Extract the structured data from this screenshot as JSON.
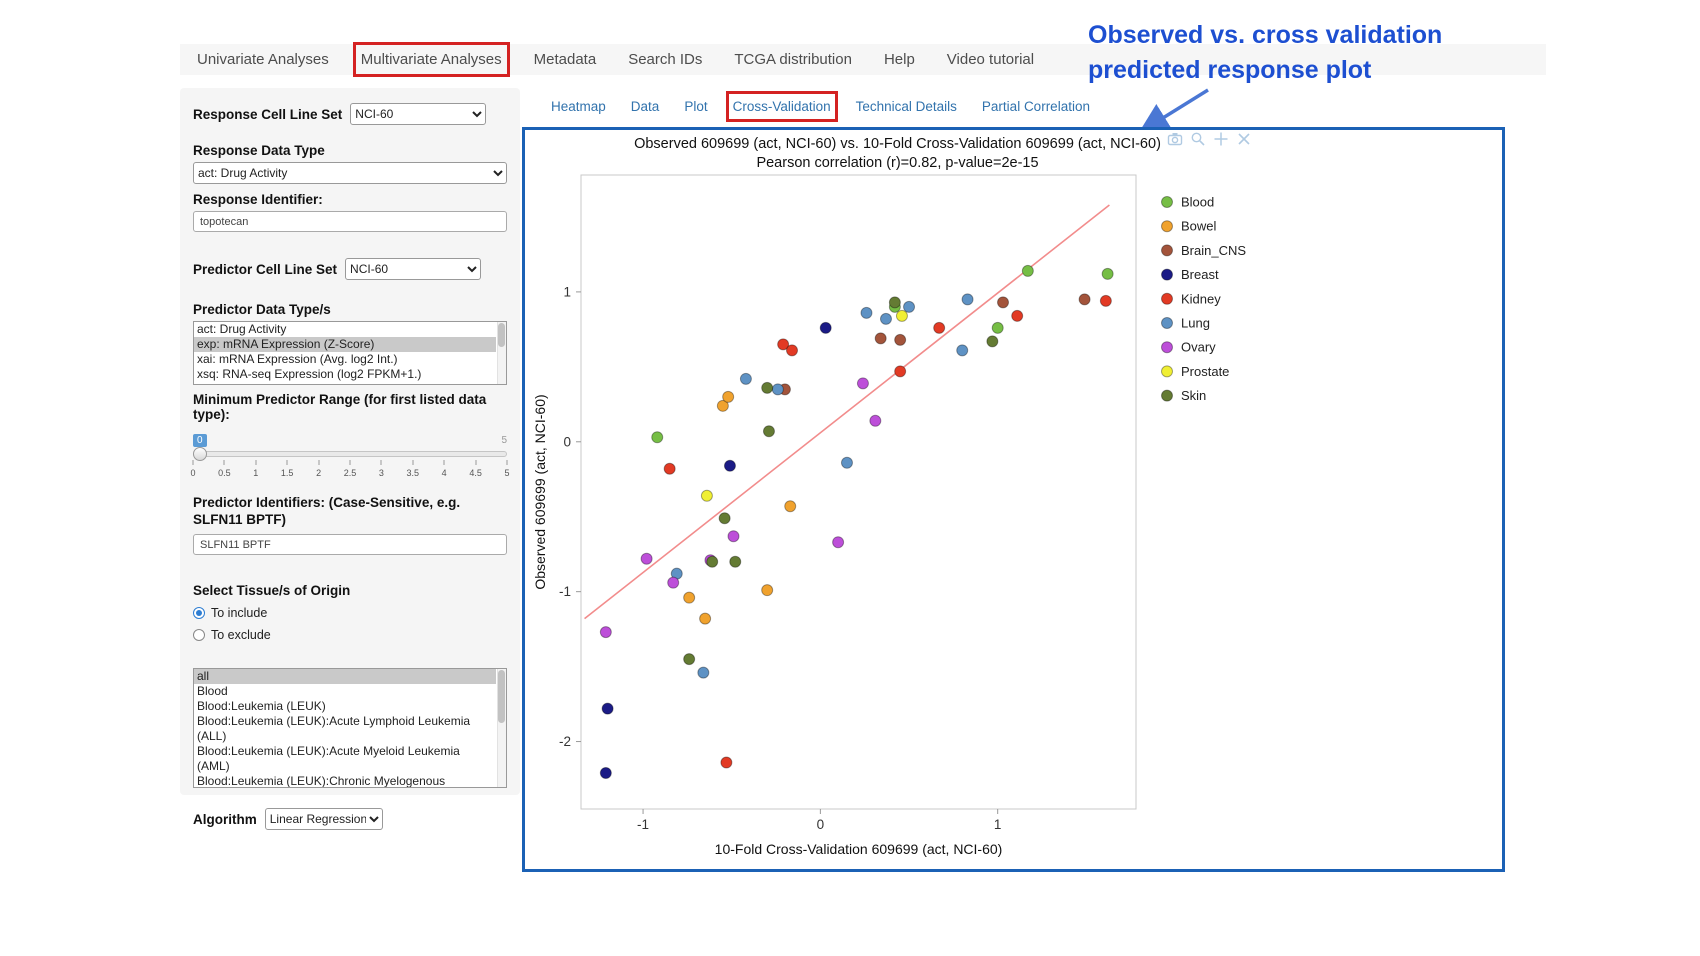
{
  "annotation": {
    "line1": "Observed vs. cross validation",
    "line2": "predicted response plot"
  },
  "top_nav": {
    "items": [
      {
        "label": "Univariate Analyses",
        "highlighted": false
      },
      {
        "label": "Multivariate Analyses",
        "highlighted": true
      },
      {
        "label": "Metadata",
        "highlighted": false
      },
      {
        "label": "Search IDs",
        "highlighted": false
      },
      {
        "label": "TCGA distribution",
        "highlighted": false
      },
      {
        "label": "Help",
        "highlighted": false
      },
      {
        "label": "Video tutorial",
        "highlighted": false
      }
    ]
  },
  "sub_tabs": {
    "items": [
      {
        "label": "Heatmap",
        "highlighted": false
      },
      {
        "label": "Data",
        "highlighted": false
      },
      {
        "label": "Plot",
        "highlighted": false
      },
      {
        "label": "Cross-Validation",
        "highlighted": true
      },
      {
        "label": "Technical Details",
        "highlighted": false
      },
      {
        "label": "Partial Correlation",
        "highlighted": false
      }
    ]
  },
  "sidebar": {
    "response_cell_line_set": {
      "label": "Response Cell Line Set",
      "value": "NCI-60"
    },
    "response_data_type": {
      "label": "Response Data Type",
      "value": "act: Drug Activity"
    },
    "response_identifier": {
      "label": "Response Identifier:",
      "value": "topotecan"
    },
    "predictor_cell_line_set": {
      "label": "Predictor Cell Line Set",
      "value": "NCI-60"
    },
    "predictor_data_types": {
      "label": "Predictor Data Type/s",
      "options": [
        "act: Drug Activity",
        "exp: mRNA Expression (Z-Score)",
        "xai: mRNA Expression (Avg. log2 Int.)",
        "xsq: RNA-seq Expression (log2 FPKM+1.)"
      ],
      "selected_index": 1
    },
    "min_predictor_range": {
      "label": "Minimum Predictor Range (for first listed data type):",
      "value": "0",
      "max_label": "5",
      "ticks": [
        "0",
        "0.5",
        "1",
        "1.5",
        "2",
        "2.5",
        "3",
        "3.5",
        "4",
        "4.5",
        "5"
      ]
    },
    "predictor_identifiers": {
      "label": "Predictor Identifiers: (Case-Sensitive, e.g. SLFN11 BPTF)",
      "value": "SLFN11 BPTF"
    },
    "tissue_origin": {
      "label": "Select Tissue/s of Origin",
      "radio_include": "To include",
      "radio_exclude": "To exclude",
      "include_selected": true,
      "options": [
        "all",
        "Blood",
        "Blood:Leukemia (LEUK)",
        "Blood:Leukemia (LEUK):Acute Lymphoid Leukemia (ALL)",
        "Blood:Leukemia (LEUK):Acute Myeloid Leukemia (AML)",
        "Blood:Leukemia (LEUK):Chronic Myelogenous Leukemia (CML)"
      ],
      "selected_index": 0
    },
    "algorithm": {
      "label": "Algorithm",
      "value": "Linear Regression"
    }
  },
  "modebar": {
    "icons": [
      "camera",
      "zoom",
      "pan",
      "close"
    ]
  },
  "colors": {
    "highlight_red": "#D42222",
    "annotation_blue": "#1D4FD1",
    "panel_border_blue": "#1B61B5",
    "link_blue": "#3273AD"
  },
  "chart_data": {
    "type": "scatter",
    "title": "Observed 609699 (act, NCI-60) vs. 10-Fold Cross-Validation 609699 (act, NCI-60)",
    "subtitle": "Pearson correlation (r)=0.82, p-value=2e-15",
    "xlabel": "10-Fold Cross-Validation 609699 (act, NCI-60)",
    "ylabel": "Observed 609699 (act, NCI-60)",
    "xlim": [
      -1.35,
      1.78
    ],
    "ylim": [
      -2.45,
      1.78
    ],
    "xticks": [
      -1,
      0,
      1
    ],
    "yticks": [
      -2,
      -1,
      0,
      1
    ],
    "legend_position": "right",
    "grid": false,
    "regression_line": {
      "x1": -1.33,
      "y1": -1.18,
      "x2": 1.63,
      "y2": 1.58,
      "color": "#F28C8C"
    },
    "series": [
      {
        "name": "Blood",
        "color": "#76BE45",
        "points": [
          [
            -0.92,
            0.03
          ],
          [
            0.42,
            0.9
          ],
          [
            1.0,
            0.76
          ],
          [
            1.17,
            1.14
          ],
          [
            1.62,
            1.12
          ]
        ]
      },
      {
        "name": "Bowel",
        "color": "#F0A22E",
        "points": [
          [
            -0.55,
            0.24
          ],
          [
            -0.52,
            0.3
          ],
          [
            -0.17,
            -0.43
          ],
          [
            -0.3,
            -0.99
          ],
          [
            -0.74,
            -1.04
          ],
          [
            -0.65,
            -1.18
          ]
        ]
      },
      {
        "name": "Brain_CNS",
        "color": "#A3543B",
        "points": [
          [
            0.34,
            0.69
          ],
          [
            0.45,
            0.68
          ],
          [
            1.03,
            0.93
          ],
          [
            1.49,
            0.95
          ],
          [
            -0.2,
            0.35
          ]
        ]
      },
      {
        "name": "Breast",
        "color": "#1B1B86",
        "points": [
          [
            0.03,
            0.76
          ],
          [
            -0.51,
            -0.16
          ],
          [
            -1.2,
            -1.78
          ],
          [
            -1.21,
            -2.21
          ]
        ]
      },
      {
        "name": "Kidney",
        "color": "#E23A24",
        "points": [
          [
            -0.85,
            -0.18
          ],
          [
            -0.21,
            0.65
          ],
          [
            -0.16,
            0.61
          ],
          [
            0.45,
            0.47
          ],
          [
            0.67,
            0.76
          ],
          [
            1.11,
            0.84
          ],
          [
            1.61,
            0.94
          ],
          [
            -0.53,
            -2.14
          ]
        ]
      },
      {
        "name": "Lung",
        "color": "#5E92C4",
        "points": [
          [
            -0.42,
            0.42
          ],
          [
            -0.24,
            0.35
          ],
          [
            0.26,
            0.86
          ],
          [
            0.37,
            0.82
          ],
          [
            0.5,
            0.9
          ],
          [
            0.83,
            0.95
          ],
          [
            0.8,
            0.61
          ],
          [
            0.15,
            -0.14
          ],
          [
            -0.81,
            -0.88
          ],
          [
            -0.66,
            -1.54
          ]
        ]
      },
      {
        "name": "Ovary",
        "color": "#BD4FD9",
        "points": [
          [
            -1.21,
            -1.27
          ],
          [
            -0.98,
            -0.78
          ],
          [
            -0.83,
            -0.94
          ],
          [
            -0.62,
            -0.79
          ],
          [
            -0.49,
            -0.63
          ],
          [
            0.1,
            -0.67
          ],
          [
            0.24,
            0.39
          ],
          [
            0.31,
            0.14
          ]
        ]
      },
      {
        "name": "Prostate",
        "color": "#F0EF34",
        "points": [
          [
            -0.64,
            -0.36
          ],
          [
            0.46,
            0.84
          ]
        ]
      },
      {
        "name": "Skin",
        "color": "#647B33",
        "points": [
          [
            -0.3,
            0.36
          ],
          [
            -0.29,
            0.07
          ],
          [
            -0.54,
            -0.51
          ],
          [
            -0.61,
            -0.8
          ],
          [
            -0.48,
            -0.8
          ],
          [
            -0.74,
            -1.45
          ],
          [
            0.42,
            0.93
          ],
          [
            0.97,
            0.67
          ]
        ]
      }
    ]
  }
}
